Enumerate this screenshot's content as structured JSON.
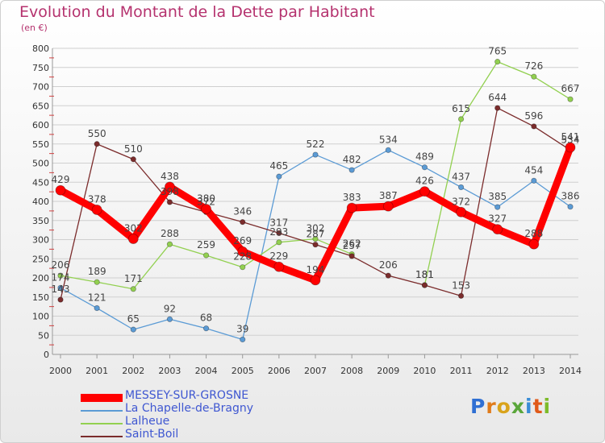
{
  "header": {
    "title": "Evolution du Montant de la Dette par Habitant",
    "subtitle": "(en €)"
  },
  "logo": {
    "text": "Proxiti",
    "letter_colors": [
      "#2f6fd3",
      "#e07b1a",
      "#d9a31b",
      "#5aa63a",
      "#3a8dd6",
      "#e05a1a",
      "#7dbb2a"
    ]
  },
  "chart_data": {
    "type": "line",
    "title": "Evolution du Montant de la Dette par Habitant",
    "subtitle": "(en €)",
    "xlabel": "",
    "ylabel": "",
    "x": [
      "2000",
      "2001",
      "2002",
      "2003",
      "2004",
      "2005",
      "2006",
      "2007",
      "2008",
      "2009",
      "2010",
      "2011",
      "2012",
      "2013",
      "2014"
    ],
    "ylim": [
      0,
      800
    ],
    "yticks": [
      0,
      50,
      100,
      150,
      200,
      250,
      300,
      350,
      400,
      450,
      500,
      550,
      600,
      650,
      700,
      750,
      800
    ],
    "grid": "horizontal",
    "legend_position": "bottom-left",
    "series": [
      {
        "name": "MESSEY-SUR-GROSNE",
        "color": "#ff0000",
        "emphasis": true,
        "values": [
          429,
          378,
          302,
          438,
          380,
          269,
          229,
          194,
          383,
          387,
          426,
          372,
          327,
          288,
          541
        ]
      },
      {
        "name": "La Chapelle-de-Bragny",
        "color": "#5b9bd5",
        "emphasis": false,
        "values": [
          174,
          121,
          65,
          92,
          68,
          39,
          465,
          522,
          482,
          534,
          489,
          437,
          385,
          454,
          386
        ]
      },
      {
        "name": "Lalheue",
        "color": "#92d050",
        "emphasis": false,
        "values": [
          206,
          189,
          171,
          288,
          259,
          228,
          293,
          302,
          262,
          null,
          181,
          615,
          765,
          726,
          667
        ]
      },
      {
        "name": "Saint-Boil",
        "color": "#7b2c2c",
        "emphasis": false,
        "values": [
          143,
          550,
          510,
          398,
          372,
          346,
          317,
          287,
          257,
          206,
          181,
          153,
          644,
          596,
          534
        ]
      }
    ]
  }
}
